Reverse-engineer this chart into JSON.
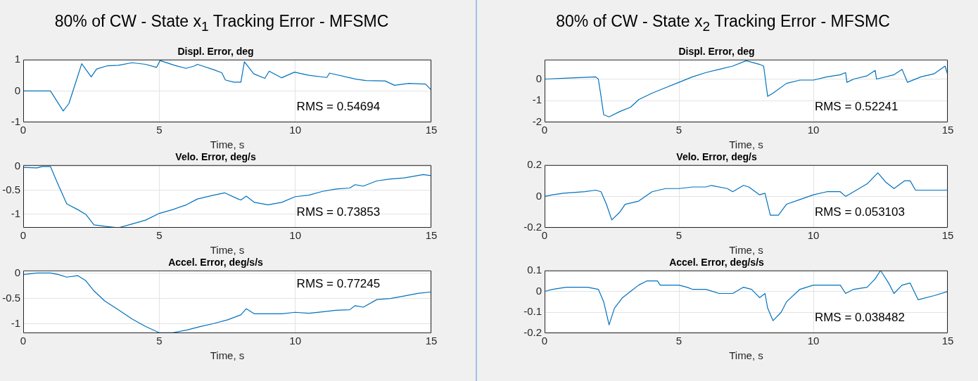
{
  "chart_data": [
    {
      "type": "line",
      "title": "80% of CW - State x$_{1}$ Tracking Error - MFSMC",
      "subtitle": "Displ. Error, deg",
      "xlabel": "Time, s",
      "xlim": [
        0,
        15
      ],
      "xticks": [
        0,
        5,
        10,
        15
      ],
      "ylim": [
        -1,
        1
      ],
      "yticks": [
        -1,
        0,
        1
      ],
      "grid": true,
      "annotations": [
        "RMS = 0.54694"
      ],
      "series": [
        {
          "color": "#0072bd",
          "x": [
            0,
            1.0,
            1.47,
            1.68,
            1.94,
            2.15,
            2.5,
            2.7,
            3.08,
            3.5,
            4.0,
            4.5,
            4.9,
            5.03,
            5.56,
            5.98,
            6.3,
            6.4,
            7.0,
            7.3,
            7.43,
            7.74,
            8.0,
            8.13,
            8.47,
            8.88,
            9.04,
            9.5,
            9.97,
            10.5,
            11.16,
            11.26,
            12.2,
            12.6,
            13.3,
            13.65,
            14.17,
            14.79,
            15
          ],
          "values": [
            0,
            0,
            -0.64,
            -0.4,
            0.3,
            0.87,
            0.45,
            0.7,
            0.8,
            0.82,
            0.9,
            0.85,
            0.75,
            0.97,
            0.82,
            0.72,
            0.8,
            0.85,
            0.68,
            0.58,
            0.35,
            0.28,
            0.28,
            0.93,
            0.55,
            0.4,
            0.63,
            0.42,
            0.6,
            0.5,
            0.43,
            0.57,
            0.38,
            0.33,
            0.32,
            0.18,
            0.24,
            0.22,
            0.03
          ]
        }
      ]
    },
    {
      "type": "line",
      "title": "Velo. Error, deg/s",
      "xlabel": "Time, s",
      "xlim": [
        0,
        15
      ],
      "xticks": [
        0,
        5,
        10,
        15
      ],
      "ylim": [
        -1.28,
        0.03
      ],
      "yticks": [
        -1,
        -0.5,
        0
      ],
      "grid": true,
      "annotations": [
        "RMS = 0.73853"
      ],
      "series": [
        {
          "color": "#0072bd",
          "x": [
            0,
            0.5,
            0.7,
            1.0,
            1.3,
            1.6,
            2.0,
            2.3,
            2.6,
            3.0,
            3.5,
            4.0,
            4.5,
            5.0,
            5.5,
            6.0,
            6.4,
            7.0,
            7.4,
            7.9,
            8.0,
            8.2,
            8.5,
            9.0,
            9.5,
            10.0,
            10.5,
            11.0,
            11.5,
            12.0,
            12.2,
            12.5,
            13.0,
            13.5,
            14.0,
            14.7,
            15
          ],
          "values": [
            -0.02,
            -0.03,
            0,
            0,
            -0.4,
            -0.78,
            -0.9,
            -1.0,
            -1.22,
            -1.25,
            -1.28,
            -1.2,
            -1.12,
            -0.98,
            -0.9,
            -0.8,
            -0.68,
            -0.6,
            -0.55,
            -0.68,
            -0.7,
            -0.62,
            -0.75,
            -0.8,
            -0.75,
            -0.63,
            -0.6,
            -0.52,
            -0.47,
            -0.45,
            -0.38,
            -0.41,
            -0.3,
            -0.26,
            -0.24,
            -0.17,
            -0.19
          ]
        }
      ]
    },
    {
      "type": "line",
      "title": "Accel. Error, deg/s/s",
      "xlabel": "Time, s",
      "xlim": [
        0,
        15
      ],
      "xticks": [
        0,
        5,
        10,
        15
      ],
      "ylim": [
        -1.18,
        0.05
      ],
      "yticks": [
        -1,
        -0.5,
        0
      ],
      "grid": true,
      "annotations": [
        "RMS = 0.77245"
      ],
      "series": [
        {
          "color": "#0072bd",
          "x": [
            0,
            0.5,
            1.0,
            1.3,
            1.6,
            2.0,
            2.3,
            2.6,
            3.0,
            3.5,
            4.0,
            4.5,
            5.0,
            5.5,
            6.0,
            6.5,
            7.0,
            7.5,
            8.0,
            8.2,
            8.5,
            9.0,
            9.5,
            10.0,
            10.5,
            11.0,
            11.5,
            12.0,
            12.2,
            12.5,
            13.0,
            13.5,
            14.0,
            14.5,
            15
          ],
          "values": [
            -0.03,
            0,
            0,
            -0.03,
            -0.08,
            -0.05,
            -0.15,
            -0.35,
            -0.55,
            -0.72,
            -0.9,
            -1.05,
            -1.17,
            -1.17,
            -1.12,
            -1.05,
            -0.99,
            -0.92,
            -0.82,
            -0.7,
            -0.8,
            -0.8,
            -0.8,
            -0.77,
            -0.79,
            -0.76,
            -0.73,
            -0.72,
            -0.64,
            -0.67,
            -0.52,
            -0.5,
            -0.45,
            -0.4,
            -0.37
          ]
        }
      ]
    },
    {
      "type": "line",
      "title": "80% of CW - State x$_{2}$ Tracking Error - MFSMC",
      "subtitle": "Displ. Error, deg",
      "xlabel": "Time, s",
      "xlim": [
        0,
        15
      ],
      "xticks": [
        0,
        5,
        10,
        15
      ],
      "ylim": [
        -2,
        0.9
      ],
      "yticks": [
        -2,
        -1,
        0
      ],
      "grid": true,
      "annotations": [
        "RMS = 0.52241"
      ],
      "series": [
        {
          "color": "#0072bd",
          "x": [
            0,
            1.0,
            1.9,
            2.0,
            2.1,
            2.2,
            2.4,
            2.8,
            3.2,
            3.5,
            4.0,
            4.5,
            5.0,
            5.5,
            6.0,
            6.5,
            7.0,
            7.5,
            8.0,
            8.15,
            8.3,
            8.5,
            9.0,
            9.5,
            10.0,
            10.5,
            11.0,
            11.2,
            11.25,
            11.5,
            12.0,
            12.3,
            12.35,
            13.0,
            13.3,
            13.5,
            14.0,
            14.5,
            14.9,
            15
          ],
          "values": [
            0,
            0.05,
            0.1,
            0,
            -0.8,
            -1.65,
            -1.75,
            -1.5,
            -1.3,
            -0.95,
            -0.65,
            -0.4,
            -0.15,
            0.1,
            0.3,
            0.45,
            0.6,
            0.85,
            0.68,
            0.6,
            -0.8,
            -0.65,
            -0.2,
            -0.05,
            -0.05,
            0.1,
            0.2,
            0.3,
            -0.15,
            0,
            0.15,
            0.4,
            0,
            0.2,
            0.45,
            -0.15,
            0.1,
            0.25,
            0.6,
            0.2
          ]
        }
      ]
    },
    {
      "type": "line",
      "title": "Velo. Error, deg/s",
      "xlabel": "Time, s",
      "xlim": [
        0,
        15
      ],
      "xticks": [
        0,
        5,
        10,
        15
      ],
      "ylim": [
        -0.2,
        0.2
      ],
      "yticks": [
        -0.2,
        0,
        0.2
      ],
      "grid": true,
      "annotations": [
        "RMS = 0.053103"
      ],
      "series": [
        {
          "color": "#0072bd",
          "x": [
            0,
            0.3,
            0.7,
            1.5,
            1.9,
            2.1,
            2.3,
            2.5,
            2.8,
            3.0,
            3.5,
            4.0,
            4.5,
            5.0,
            5.5,
            6.0,
            6.2,
            6.8,
            7.0,
            7.4,
            7.6,
            8.0,
            8.2,
            8.3,
            8.4,
            8.7,
            9.0,
            9.5,
            10.0,
            10.5,
            11.0,
            11.2,
            11.5,
            12.0,
            12.4,
            12.7,
            13.0,
            13.4,
            13.6,
            13.8,
            14.5,
            15
          ],
          "values": [
            0,
            0.01,
            0.02,
            0.03,
            0.04,
            0.03,
            -0.05,
            -0.15,
            -0.1,
            -0.05,
            -0.03,
            0.03,
            0.05,
            0.05,
            0.06,
            0.06,
            0.07,
            0.05,
            0.03,
            0.07,
            0.06,
            0.01,
            0.02,
            -0.05,
            -0.12,
            -0.12,
            -0.05,
            -0.02,
            0.01,
            0.03,
            0.03,
            0,
            0.03,
            0.08,
            0.15,
            0.09,
            0.05,
            0.1,
            0.1,
            0.04,
            0.04,
            0.04
          ]
        }
      ]
    },
    {
      "type": "line",
      "title": "Accel. Error, deg/s/s",
      "xlabel": "Time, s",
      "xlim": [
        0,
        15
      ],
      "xticks": [
        0,
        5,
        10,
        15
      ],
      "ylim": [
        -0.2,
        0.1
      ],
      "yticks": [
        -0.2,
        -0.1,
        0,
        0.1
      ],
      "grid": true,
      "annotations": [
        "RMS = 0.038482"
      ],
      "series": [
        {
          "color": "#0072bd",
          "x": [
            0,
            0.3,
            0.8,
            1.6,
            2.0,
            2.2,
            2.4,
            2.6,
            2.9,
            3.2,
            3.5,
            3.8,
            4.2,
            4.3,
            5.0,
            5.3,
            5.5,
            6.0,
            6.5,
            7.0,
            7.4,
            7.7,
            8.0,
            8.2,
            8.3,
            8.5,
            8.8,
            9.0,
            9.5,
            10.0,
            10.5,
            11.0,
            11.2,
            11.5,
            12.0,
            12.3,
            12.5,
            12.8,
            13.0,
            13.3,
            13.6,
            13.9,
            14.5,
            15
          ],
          "values": [
            0,
            0.01,
            0.02,
            0.02,
            0.01,
            -0.05,
            -0.16,
            -0.08,
            -0.03,
            0,
            0.03,
            0.05,
            0.05,
            0.03,
            0.03,
            0.02,
            0.01,
            0.01,
            -0.01,
            -0.01,
            0.02,
            0.01,
            -0.03,
            -0.01,
            -0.08,
            -0.14,
            -0.1,
            -0.05,
            0.01,
            0.03,
            0.03,
            0.03,
            -0.01,
            0.01,
            0.02,
            0.06,
            0.1,
            0.04,
            -0.01,
            0.03,
            0.04,
            -0.04,
            -0.02,
            0
          ]
        }
      ]
    }
  ]
}
